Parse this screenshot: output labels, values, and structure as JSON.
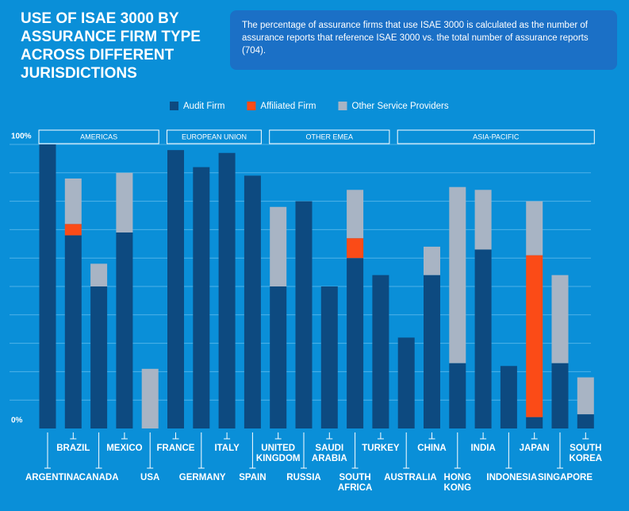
{
  "chart_data": {
    "type": "stacked_bar",
    "title": "USE OF ISAE 3000 BY ASSURANCE FIRM TYPE ACROSS DIFFERENT JURISDICTIONS",
    "description": "The percentage of assurance firms that use ISAE 3000 is calculated as the number of assurance reports that reference ISAE 3000 vs. the total number of assurance reports (704).",
    "categories": [
      "ARGENTINA",
      "BRAZIL",
      "CANADA",
      "MEXICO",
      "USA",
      "FRANCE",
      "GERMANY",
      "ITALY",
      "SPAIN",
      "UNITED KINGDOM",
      "RUSSIA",
      "SAUDI ARABIA",
      "SOUTH AFRICA",
      "TURKEY",
      "AUSTRALIA",
      "CHINA",
      "HONG KONG",
      "INDIA",
      "INDONESIA",
      "JAPAN",
      "SINGAPORE",
      "SOUTH KOREA"
    ],
    "regions": [
      {
        "name": "AMERICAS",
        "first": 0,
        "last": 4
      },
      {
        "name": "EUROPEAN UNION",
        "first": 5,
        "last": 8
      },
      {
        "name": "OTHER EMEA",
        "first": 9,
        "last": 13
      },
      {
        "name": "ASIA-PACIFIC",
        "first": 14,
        "last": 21
      }
    ],
    "series": [
      {
        "name": "Audit Firm",
        "color": "#0d4a80",
        "values": [
          100,
          68,
          50,
          69,
          0,
          98,
          92,
          97,
          89,
          50,
          80,
          50,
          60,
          54,
          32,
          54,
          23,
          63,
          22,
          4,
          23,
          5
        ]
      },
      {
        "name": "Affiliated Firm",
        "color": "#fb4b17",
        "values": [
          0,
          4,
          0,
          0,
          0,
          0,
          0,
          0,
          0,
          0,
          0,
          0,
          7,
          0,
          0,
          0,
          0,
          0,
          0,
          57,
          0,
          0
        ]
      },
      {
        "name": "Other Service Providers",
        "color": "#a8b4c4",
        "values": [
          0,
          16,
          8,
          21,
          21,
          0,
          0,
          0,
          0,
          28,
          0,
          0,
          17,
          0,
          0,
          10,
          62,
          21,
          0,
          19,
          31,
          13
        ]
      }
    ],
    "ylim": [
      0,
      100
    ],
    "yticks": [
      {
        "value": 0,
        "label": "0%"
      },
      {
        "value": 100,
        "label": "100%"
      }
    ],
    "ygrid": [
      10,
      20,
      30,
      40,
      50,
      60,
      70,
      80,
      90,
      100
    ],
    "grid": true
  }
}
